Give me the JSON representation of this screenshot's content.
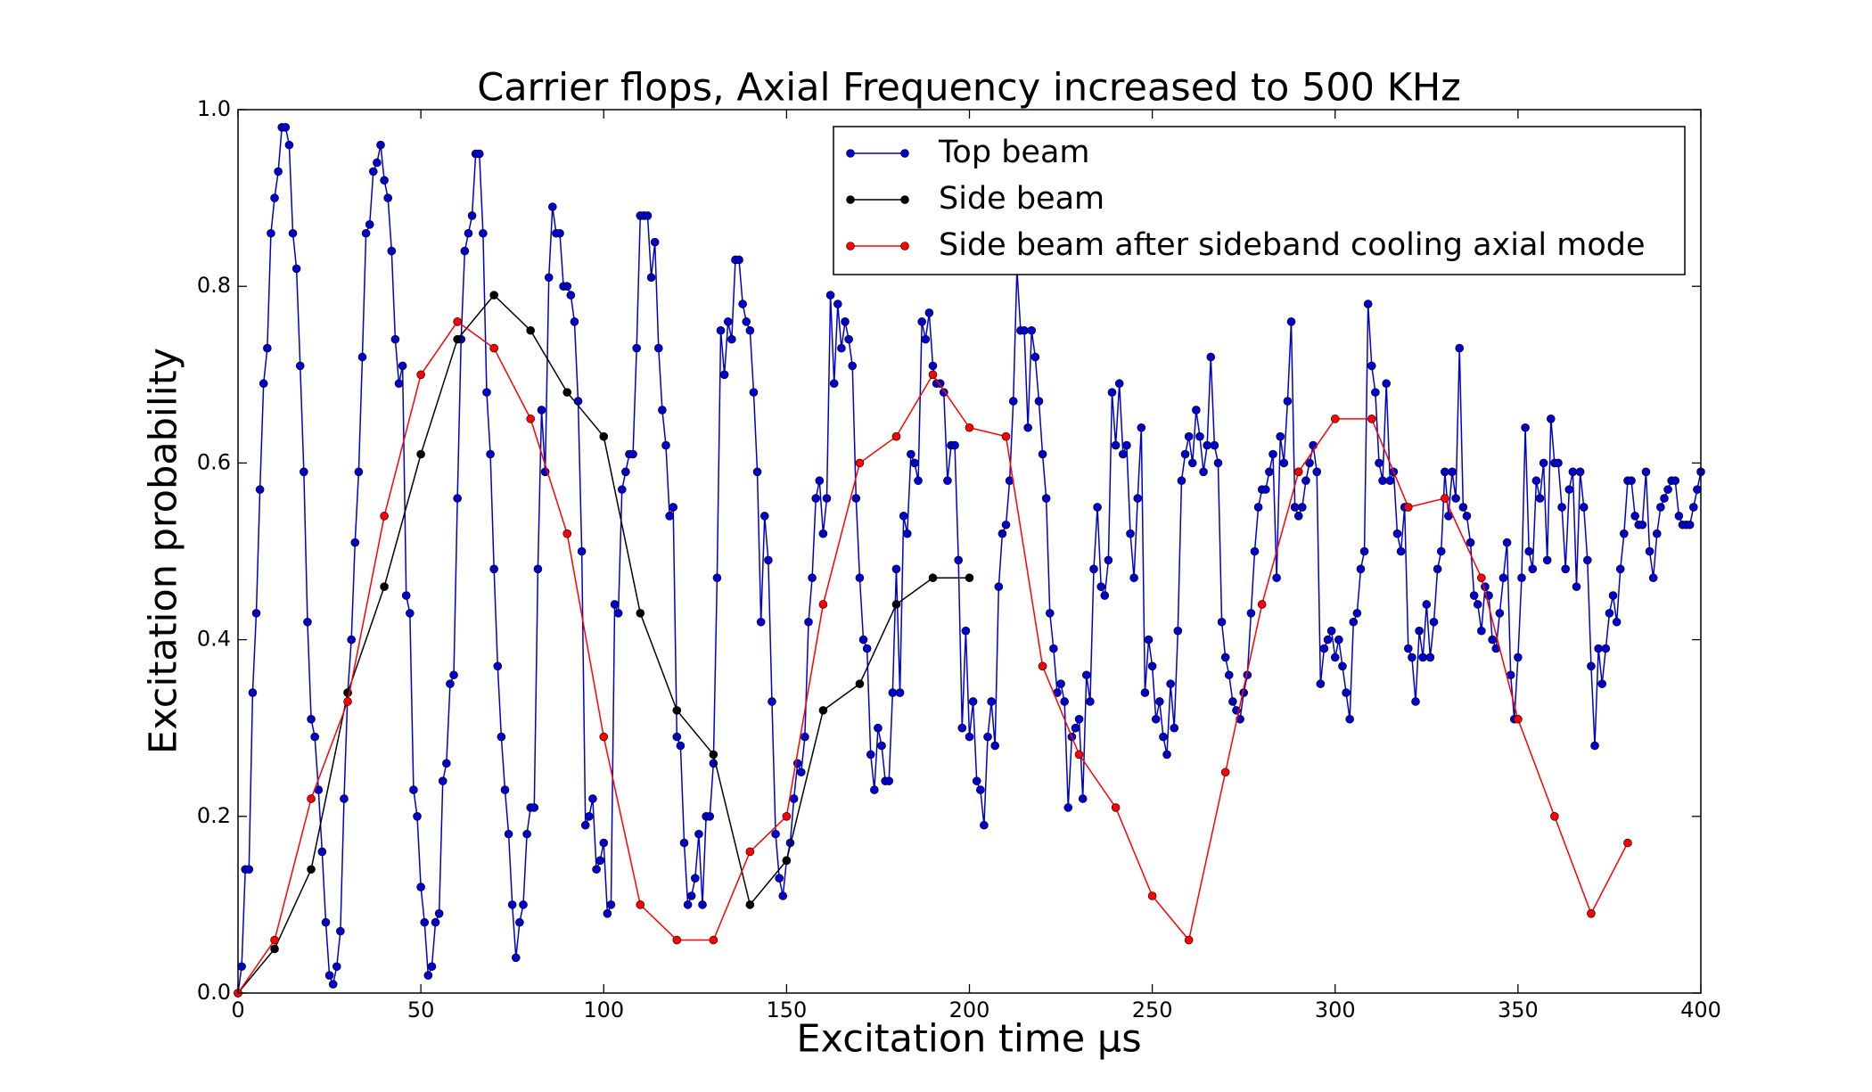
{
  "chart_data": {
    "type": "line",
    "title": "Carrier flops, Axial Frequency increased to 500 KHz",
    "x_label": "Excitation time μs",
    "y_label": "Excitation probability",
    "xlim": [
      0,
      400
    ],
    "ylim": [
      0,
      1
    ],
    "xticks": [
      0,
      50,
      100,
      150,
      200,
      250,
      300,
      350,
      400
    ],
    "yticks": [
      {
        "value": 0,
        "label": "0.0"
      },
      0.2,
      0.4,
      0.6,
      0.8,
      {
        "value": 1,
        "label": "1.0"
      }
    ],
    "grid": false,
    "legend_loc": "upper right",
    "series": [
      {
        "name": "Top beam",
        "color": "#0000cc",
        "x": [
          0,
          1,
          2,
          3,
          4,
          5,
          6,
          7,
          8,
          9,
          10,
          11,
          12,
          13,
          14,
          15,
          16,
          17,
          18,
          19,
          20,
          21,
          22,
          23,
          24,
          25,
          26,
          27,
          28,
          29,
          30,
          31,
          32,
          33,
          34,
          35,
          36,
          37,
          38,
          39,
          40,
          41,
          42,
          43,
          44,
          45,
          46,
          47,
          48,
          49,
          50,
          51,
          52,
          53,
          54,
          55,
          56,
          57,
          58,
          59,
          60,
          61,
          62,
          63,
          64,
          65,
          66,
          67,
          68,
          69,
          70,
          71,
          72,
          73,
          74,
          75,
          76,
          77,
          78,
          79,
          80,
          81,
          82,
          83,
          84,
          85,
          86,
          87,
          88,
          89,
          90,
          91,
          92,
          93,
          94,
          95,
          96,
          97,
          98,
          99,
          100,
          101,
          102,
          103,
          104,
          105,
          106,
          107,
          108,
          109,
          110,
          111,
          112,
          113,
          114,
          115,
          116,
          117,
          118,
          119,
          120,
          121,
          122,
          123,
          124,
          125,
          126,
          127,
          128,
          129,
          130,
          131,
          132,
          133,
          134,
          135,
          136,
          137,
          138,
          139,
          140,
          141,
          142,
          143,
          144,
          145,
          146,
          147,
          148,
          149,
          150,
          151,
          152,
          153,
          154,
          155,
          156,
          157,
          158,
          159,
          160,
          161,
          162,
          163,
          164,
          165,
          166,
          167,
          168,
          169,
          170,
          171,
          172,
          173,
          174,
          175,
          176,
          177,
          178,
          179,
          180,
          181,
          182,
          183,
          184,
          185,
          186,
          187,
          188,
          189,
          190,
          191,
          192,
          193,
          194,
          195,
          196,
          197,
          198,
          199,
          200,
          201,
          202,
          203,
          204,
          205,
          206,
          207,
          208,
          209,
          210,
          211,
          212,
          213,
          214,
          215,
          216,
          217,
          218,
          219,
          220,
          221,
          222,
          223,
          224,
          225,
          226,
          227,
          228,
          229,
          230,
          231,
          232,
          233,
          234,
          235,
          236,
          237,
          238,
          239,
          240,
          241,
          242,
          243,
          244,
          245,
          246,
          247,
          248,
          249,
          250,
          251,
          252,
          253,
          254,
          255,
          256,
          257,
          258,
          259,
          260,
          261,
          262,
          263,
          264,
          265,
          266,
          267,
          268,
          269,
          270,
          271,
          272,
          273,
          274,
          275,
          276,
          277,
          278,
          279,
          280,
          281,
          282,
          283,
          284,
          285,
          286,
          287,
          288,
          289,
          290,
          291,
          292,
          293,
          294,
          295,
          296,
          297,
          298,
          299,
          300,
          301,
          302,
          303,
          304,
          305,
          306,
          307,
          308,
          309,
          310,
          311,
          312,
          313,
          314,
          315,
          316,
          317,
          318,
          319,
          320,
          321,
          322,
          323,
          324,
          325,
          326,
          327,
          328,
          329,
          330,
          331,
          332,
          333,
          334,
          335,
          336,
          337,
          338,
          339,
          340,
          341,
          342,
          343,
          344,
          345,
          346,
          347,
          348,
          349,
          350,
          351,
          352,
          353,
          354,
          355,
          356,
          357,
          358,
          359,
          360,
          361,
          362,
          363,
          364,
          365,
          366,
          367,
          368,
          369,
          370,
          371,
          372,
          373,
          374,
          375,
          376,
          377,
          378,
          379,
          380,
          381,
          382,
          383,
          384,
          385,
          386,
          387,
          388,
          389,
          390,
          391,
          392,
          393,
          394,
          395,
          396,
          397,
          398,
          399,
          400
        ],
        "values": [
          0,
          0.03,
          0.14,
          0.14,
          0.34,
          0.43,
          0.57,
          0.69,
          0.73,
          0.86,
          0.9,
          0.93,
          0.98,
          0.98,
          0.96,
          0.86,
          0.82,
          0.71,
          0.59,
          0.42,
          0.31,
          0.29,
          0.23,
          0.16,
          0.08,
          0.02,
          0.01,
          0.03,
          0.07,
          0.22,
          0.34,
          0.4,
          0.51,
          0.59,
          0.72,
          0.86,
          0.87,
          0.93,
          0.94,
          0.96,
          0.92,
          0.9,
          0.84,
          0.74,
          0.69,
          0.71,
          0.45,
          0.43,
          0.23,
          0.2,
          0.12,
          0.08,
          0.02,
          0.03,
          0.08,
          0.09,
          0.24,
          0.26,
          0.35,
          0.36,
          0.56,
          0.74,
          0.84,
          0.86,
          0.88,
          0.95,
          0.95,
          0.86,
          0.68,
          0.61,
          0.48,
          0.37,
          0.29,
          0.23,
          0.18,
          0.1,
          0.04,
          0.08,
          0.1,
          0.18,
          0.21,
          0.21,
          0.48,
          0.66,
          0.59,
          0.81,
          0.89,
          0.86,
          0.86,
          0.8,
          0.8,
          0.79,
          0.76,
          0.67,
          0.5,
          0.19,
          0.2,
          0.22,
          0.14,
          0.15,
          0.17,
          0.09,
          0.1,
          0.44,
          0.43,
          0.57,
          0.59,
          0.61,
          0.61,
          0.73,
          0.88,
          0.88,
          0.88,
          0.81,
          0.85,
          0.73,
          0.66,
          0.62,
          0.54,
          0.55,
          0.29,
          0.28,
          0.17,
          0.1,
          0.11,
          0.13,
          0.18,
          0.1,
          0.2,
          0.2,
          0.26,
          0.47,
          0.75,
          0.7,
          0.76,
          0.74,
          0.83,
          0.83,
          0.78,
          0.76,
          0.75,
          0.68,
          0.59,
          0.42,
          0.54,
          0.49,
          0.33,
          0.18,
          0.13,
          0.11,
          0.15,
          0.17,
          0.22,
          0.26,
          0.25,
          0.29,
          0.42,
          0.47,
          0.56,
          0.58,
          0.52,
          0.56,
          0.79,
          0.69,
          0.78,
          0.73,
          0.76,
          0.74,
          0.71,
          0.56,
          0.47,
          0.4,
          0.39,
          0.27,
          0.23,
          0.3,
          0.28,
          0.24,
          0.24,
          0.34,
          0.48,
          0.34,
          0.54,
          0.52,
          0.61,
          0.6,
          0.58,
          0.76,
          0.74,
          0.77,
          0.71,
          0.69,
          0.69,
          0.68,
          0.58,
          0.62,
          0.62,
          0.49,
          0.3,
          0.41,
          0.29,
          0.33,
          0.24,
          0.23,
          0.19,
          0.29,
          0.33,
          0.28,
          0.46,
          0.52,
          0.53,
          0.58,
          0.67,
          0.82,
          0.75,
          0.75,
          0.64,
          0.75,
          0.72,
          0.67,
          0.61,
          0.56,
          0.43,
          0.39,
          0.34,
          0.35,
          0.33,
          0.21,
          0.29,
          0.3,
          0.31,
          0.22,
          0.36,
          0.33,
          0.48,
          0.55,
          0.46,
          0.45,
          0.49,
          0.68,
          0.62,
          0.69,
          0.61,
          0.62,
          0.52,
          0.47,
          0.56,
          0.64,
          0.34,
          0.4,
          0.37,
          0.31,
          0.33,
          0.29,
          0.27,
          0.35,
          0.3,
          0.41,
          0.58,
          0.61,
          0.63,
          0.6,
          0.66,
          0.63,
          0.59,
          0.62,
          0.72,
          0.62,
          0.6,
          0.42,
          0.38,
          0.36,
          0.33,
          0.32,
          0.31,
          0.34,
          0.36,
          0.43,
          0.5,
          0.55,
          0.57,
          0.57,
          0.59,
          0.61,
          0.47,
          0.63,
          0.6,
          0.67,
          0.76,
          0.55,
          0.54,
          0.55,
          0.58,
          0.6,
          0.62,
          0.59,
          0.35,
          0.39,
          0.4,
          0.41,
          0.38,
          0.4,
          0.37,
          0.34,
          0.31,
          0.42,
          0.43,
          0.48,
          0.5,
          0.78,
          0.71,
          0.68,
          0.6,
          0.58,
          0.69,
          0.58,
          0.59,
          0.52,
          0.5,
          0.55,
          0.39,
          0.38,
          0.33,
          0.41,
          0.38,
          0.44,
          0.38,
          0.42,
          0.48,
          0.5,
          0.59,
          0.54,
          0.59,
          0.56,
          0.73,
          0.55,
          0.54,
          0.51,
          0.45,
          0.44,
          0.41,
          0.46,
          0.45,
          0.4,
          0.39,
          0.43,
          0.47,
          0.51,
          0.36,
          0.31,
          0.38,
          0.47,
          0.64,
          0.5,
          0.48,
          0.58,
          0.56,
          0.6,
          0.49,
          0.65,
          0.6,
          0.6,
          0.55,
          0.48,
          0.57,
          0.59,
          0.46,
          0.59,
          0.55,
          0.49,
          0.37,
          0.28,
          0.39,
          0.35,
          0.39,
          0.43,
          0.45,
          0.42,
          0.48,
          0.52,
          0.58,
          0.58,
          0.54,
          0.53,
          0.53,
          0.59,
          0.5,
          0.47,
          0.52,
          0.55,
          0.56,
          0.57,
          0.58,
          0.58,
          0.54,
          0.53,
          0.53,
          0.53,
          0.55,
          0.57,
          0.59
        ]
      },
      {
        "name": "Side beam",
        "color": "#000000",
        "x": [
          0,
          10,
          20,
          30,
          40,
          50,
          60,
          70,
          80,
          90,
          100,
          110,
          120,
          130,
          140,
          150,
          160,
          170,
          180,
          190,
          200
        ],
        "values": [
          0,
          0.05,
          0.14,
          0.34,
          0.46,
          0.61,
          0.74,
          0.79,
          0.75,
          0.68,
          0.63,
          0.43,
          0.32,
          0.27,
          0.1,
          0.15,
          0.32,
          0.35,
          0.44,
          0.47,
          0.47
        ]
      },
      {
        "name": "Side beam after sideband cooling axial mode",
        "color": "#ff0000",
        "x": [
          0,
          10,
          20,
          30,
          40,
          50,
          60,
          70,
          80,
          90,
          100,
          110,
          120,
          130,
          140,
          150,
          160,
          170,
          180,
          190,
          200,
          210,
          220,
          230,
          240,
          250,
          260,
          270,
          280,
          290,
          300,
          310,
          320,
          330,
          340,
          350,
          360,
          370,
          380
        ],
        "values": [
          0,
          0.06,
          0.22,
          0.33,
          0.54,
          0.7,
          0.76,
          0.73,
          0.65,
          0.52,
          0.29,
          0.1,
          0.06,
          0.06,
          0.16,
          0.2,
          0.44,
          0.6,
          0.63,
          0.7,
          0.64,
          0.63,
          0.37,
          0.27,
          0.21,
          0.11,
          0.06,
          0.25,
          0.44,
          0.59,
          0.65,
          0.65,
          0.55,
          0.56,
          0.47,
          0.31,
          0.2,
          0.09,
          0.17
        ]
      }
    ]
  }
}
